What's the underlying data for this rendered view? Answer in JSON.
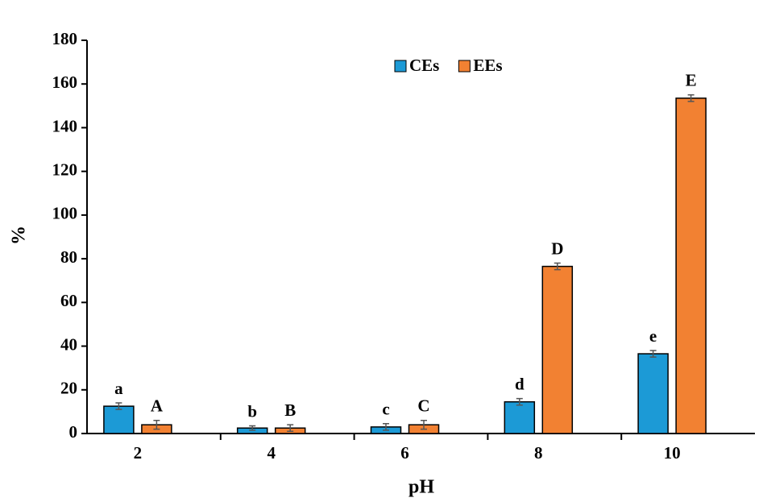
{
  "chart_data": {
    "type": "bar",
    "categories": [
      "2",
      "4",
      "6",
      "8",
      "10"
    ],
    "x_label": "pH",
    "y_label": "%",
    "ylim": [
      0,
      180
    ],
    "yticks": [
      0,
      20,
      40,
      60,
      80,
      100,
      120,
      140,
      160,
      180
    ],
    "grid": false,
    "legend": "top",
    "series": [
      {
        "name": "CEs",
        "color": "#1c9ad6",
        "values": [
          12.5,
          2.5,
          3,
          14.5,
          36.5
        ],
        "errors": [
          1.5,
          1,
          1.5,
          1.5,
          1.5
        ],
        "annotations": [
          "a",
          "b",
          "c",
          "d",
          "e"
        ]
      },
      {
        "name": "EEs",
        "color": "#f28132",
        "values": [
          4,
          2.5,
          4,
          76.5,
          153.5
        ],
        "errors": [
          2,
          1.5,
          2,
          1.5,
          1.5
        ],
        "annotations": [
          "A",
          "B",
          "C",
          "D",
          "E"
        ]
      }
    ]
  }
}
